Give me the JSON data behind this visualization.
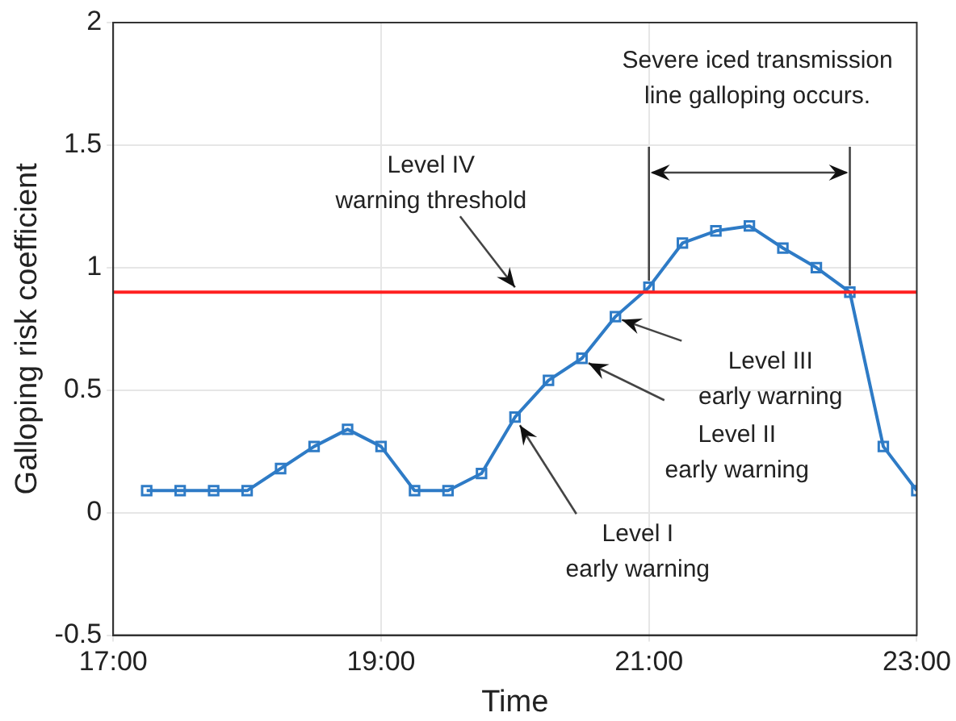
{
  "chart_data": {
    "type": "line",
    "xlabel": "Time",
    "ylabel": "Galloping risk coefficient",
    "x": [
      17.25,
      17.5,
      17.75,
      18,
      18.25,
      18.5,
      18.75,
      19,
      19.25,
      19.5,
      19.75,
      20,
      20.25,
      20.5,
      20.75,
      21,
      21.25,
      21.5,
      21.75,
      22,
      22.25,
      22.5,
      22.75,
      23
    ],
    "series": [
      {
        "color": "#2e7bc6",
        "values": [
          0.09,
          0.09,
          0.09,
          0.09,
          0.18,
          0.27,
          0.34,
          0.27,
          0.09,
          0.09,
          0.16,
          0.39,
          0.54,
          0.63,
          0.8,
          0.92,
          1.1,
          1.15,
          1.17,
          1.08,
          1,
          0.9,
          0.27,
          0.09
        ]
      }
    ],
    "xlim": [
      17,
      23
    ],
    "xticks": [
      {
        "value": 17,
        "label": "17:00"
      },
      {
        "value": 19,
        "label": "19:00"
      },
      {
        "value": 21,
        "label": "21:00"
      },
      {
        "value": 23,
        "label": "23:00"
      }
    ],
    "ylim": [
      -0.5,
      2
    ],
    "yticks": [
      -0.5,
      0,
      0.5,
      1,
      1.5,
      2
    ],
    "grid": true,
    "marker": "square",
    "line_style": "solid",
    "legend": false,
    "ref_lines": [
      {
        "axis": "y",
        "value": 0.9,
        "color": "#ff2020"
      }
    ],
    "annotations": [
      {
        "text": "Level IV\nwarning threshold",
        "x": 20,
        "y": 0.9
      },
      {
        "text": "Level I\nearly warning",
        "x": 20,
        "y": 0.39
      },
      {
        "text": "Level II\nearly warning",
        "x": 20.5,
        "y": 0.63
      },
      {
        "text": "Level III\nearly warning",
        "x": 20.75,
        "y": 0.8
      },
      "Severe iced transmission\nline galloping occurs."
    ]
  }
}
